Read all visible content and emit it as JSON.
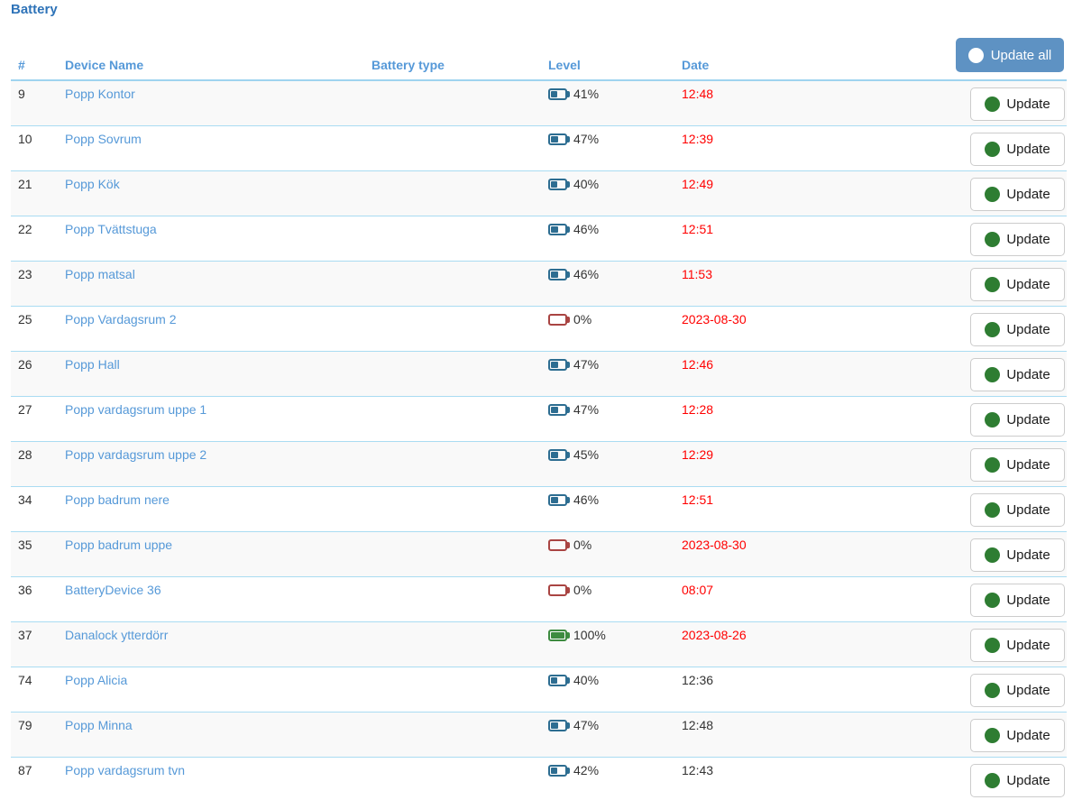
{
  "page": {
    "title": "Battery"
  },
  "toolbar": {
    "update_all_label": "Update all",
    "update_all_icon": "white-circle-icon"
  },
  "colors": {
    "title_blue": "#2e73b8",
    "header_link_blue": "#5699d8",
    "row_border_blue": "#aadcf2",
    "date_alert_red": "#ff0000",
    "battery_low_blue": "#2d6d91",
    "battery_empty_red": "#a94442",
    "battery_full_green": "#3d8b40",
    "update_all_bg": "#5e92c3",
    "update_circle_green": "#2e7d32",
    "row_stripe": "#f9f9f9"
  },
  "table": {
    "headers": {
      "num": "#",
      "device": "Device Name",
      "battery_type": "Battery type",
      "level": "Level",
      "date": "Date"
    },
    "update_label": "Update",
    "update_icon": "green-circle-icon",
    "battery_icon": "battery-icon",
    "rows": [
      {
        "num": "9",
        "name": "Popp Kontor",
        "battery_type": "",
        "level": 41,
        "level_label": "41%",
        "status": "low",
        "date": "12:48",
        "date_alert": true
      },
      {
        "num": "10",
        "name": "Popp Sovrum",
        "battery_type": "",
        "level": 47,
        "level_label": "47%",
        "status": "low",
        "date": "12:39",
        "date_alert": true
      },
      {
        "num": "21",
        "name": "Popp Kök",
        "battery_type": "",
        "level": 40,
        "level_label": "40%",
        "status": "low",
        "date": "12:49",
        "date_alert": true
      },
      {
        "num": "22",
        "name": "Popp Tvättstuga",
        "battery_type": "",
        "level": 46,
        "level_label": "46%",
        "status": "low",
        "date": "12:51",
        "date_alert": true
      },
      {
        "num": "23",
        "name": "Popp matsal",
        "battery_type": "",
        "level": 46,
        "level_label": "46%",
        "status": "low",
        "date": "11:53",
        "date_alert": true
      },
      {
        "num": "25",
        "name": "Popp Vardagsrum 2",
        "battery_type": "",
        "level": 0,
        "level_label": "0%",
        "status": "empty",
        "date": "2023-08-30",
        "date_alert": true
      },
      {
        "num": "26",
        "name": "Popp Hall",
        "battery_type": "",
        "level": 47,
        "level_label": "47%",
        "status": "low",
        "date": "12:46",
        "date_alert": true
      },
      {
        "num": "27",
        "name": "Popp vardagsrum uppe 1",
        "battery_type": "",
        "level": 47,
        "level_label": "47%",
        "status": "low",
        "date": "12:28",
        "date_alert": true
      },
      {
        "num": "28",
        "name": "Popp vardagsrum uppe 2",
        "battery_type": "",
        "level": 45,
        "level_label": "45%",
        "status": "low",
        "date": "12:29",
        "date_alert": true
      },
      {
        "num": "34",
        "name": "Popp badrum nere",
        "battery_type": "",
        "level": 46,
        "level_label": "46%",
        "status": "low",
        "date": "12:51",
        "date_alert": true
      },
      {
        "num": "35",
        "name": "Popp badrum uppe",
        "battery_type": "",
        "level": 0,
        "level_label": "0%",
        "status": "empty",
        "date": "2023-08-30",
        "date_alert": true
      },
      {
        "num": "36",
        "name": "BatteryDevice 36",
        "battery_type": "",
        "level": 0,
        "level_label": "0%",
        "status": "empty",
        "date": "08:07",
        "date_alert": true
      },
      {
        "num": "37",
        "name": "Danalock ytterdörr",
        "battery_type": "",
        "level": 100,
        "level_label": "100%",
        "status": "full",
        "date": "2023-08-26",
        "date_alert": true
      },
      {
        "num": "74",
        "name": "Popp Alicia",
        "battery_type": "",
        "level": 40,
        "level_label": "40%",
        "status": "low",
        "date": "12:36",
        "date_alert": false
      },
      {
        "num": "79",
        "name": "Popp Minna",
        "battery_type": "",
        "level": 47,
        "level_label": "47%",
        "status": "low",
        "date": "12:48",
        "date_alert": false
      },
      {
        "num": "87",
        "name": "Popp vardagsrum tvn",
        "battery_type": "",
        "level": 42,
        "level_label": "42%",
        "status": "low",
        "date": "12:43",
        "date_alert": false
      }
    ]
  }
}
